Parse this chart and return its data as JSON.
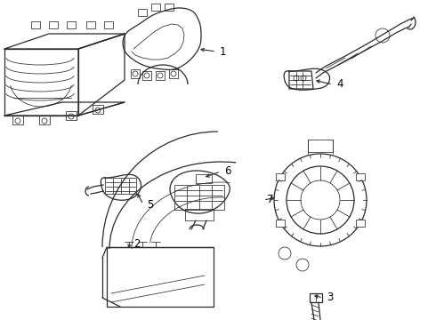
{
  "bg_color": "#ffffff",
  "line_color": "#2a2a2a",
  "label_color": "#000000",
  "label_fontsize": 8.5,
  "figsize": [
    4.9,
    3.6
  ],
  "dpi": 100
}
